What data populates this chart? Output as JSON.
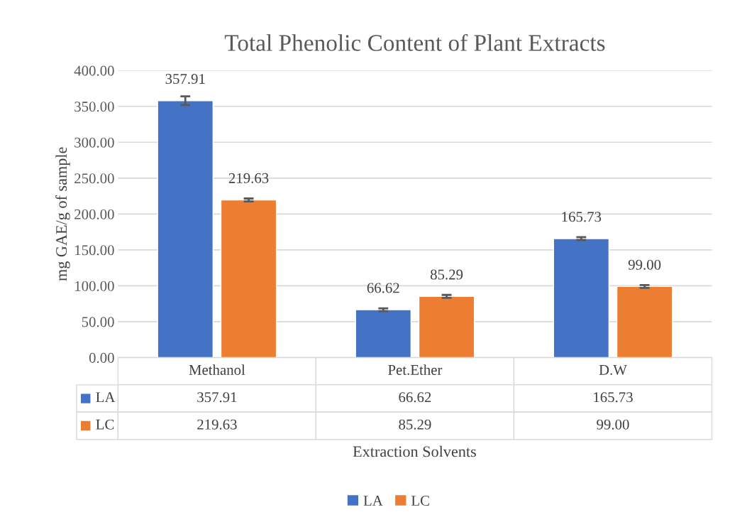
{
  "chart_data": {
    "type": "bar",
    "title": "Total Phenolic Content of Plant Extracts",
    "xlabel": "Extraction Solvents",
    "ylabel": "mg GAE/g of sample",
    "categories": [
      "Methanol",
      "Pet.Ether",
      "D.W"
    ],
    "series": [
      {
        "name": "LA",
        "color": "#4472c4",
        "values": [
          357.91,
          66.62,
          165.73
        ],
        "errors": [
          6,
          2,
          2
        ]
      },
      {
        "name": "LC",
        "color": "#ed7d31",
        "values": [
          219.63,
          85.29,
          99.0
        ],
        "errors": [
          2,
          2,
          2
        ]
      }
    ],
    "value_labels": [
      [
        "357.91",
        "66.62",
        "165.73"
      ],
      [
        "219.63",
        "85.29",
        "99.00"
      ]
    ],
    "ylim": [
      0,
      400
    ],
    "yticks": [
      {
        "value": 0,
        "label": "0.00"
      },
      {
        "value": 50,
        "label": "50.00"
      },
      {
        "value": 100,
        "label": "100.00"
      },
      {
        "value": 150,
        "label": "150.00"
      },
      {
        "value": 200,
        "label": "200.00"
      },
      {
        "value": 250,
        "label": "250.00"
      },
      {
        "value": 300,
        "label": "300.00"
      },
      {
        "value": 350,
        "label": "350.00"
      },
      {
        "value": 400,
        "label": "400.00"
      }
    ],
    "grid": "y",
    "legend": "bottom"
  }
}
